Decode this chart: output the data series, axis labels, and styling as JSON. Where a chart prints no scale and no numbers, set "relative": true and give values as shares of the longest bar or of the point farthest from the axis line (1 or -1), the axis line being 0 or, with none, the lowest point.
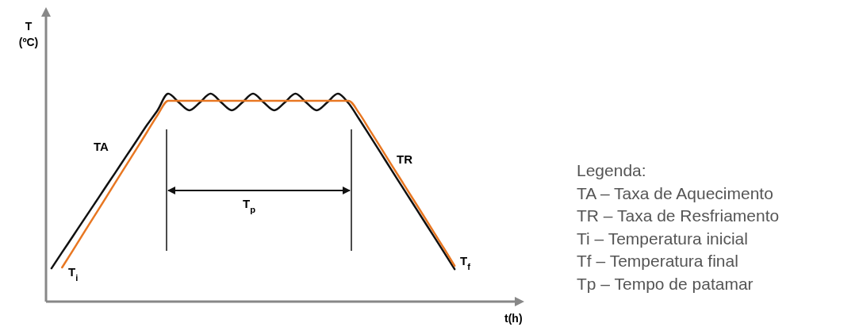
{
  "chart_data": {
    "type": "line",
    "relative": true,
    "xlabel": "t(h)",
    "ylabel": "T (ºC)",
    "categories": [
      null,
      null,
      null,
      null,
      null,
      null,
      null,
      null,
      null,
      null,
      null,
      null,
      null,
      null,
      null,
      null,
      null,
      null,
      null,
      null,
      null,
      null,
      null,
      null,
      null,
      null,
      null,
      null,
      null,
      null,
      null,
      null,
      null,
      null,
      null,
      null,
      null,
      null,
      null,
      null,
      null,
      null,
      null,
      null
    ],
    "series": [
      {
        "color": "#111111",
        "values": [
          0.16,
          0.237,
          0.313,
          0.39,
          0.466,
          0.543,
          0.619,
          0.696,
          0.772,
          0.849,
          0.92,
          1,
          0.958,
          0.92,
          0.958,
          1,
          0.958,
          0.92,
          0.958,
          1,
          0.958,
          0.92,
          0.958,
          1,
          0.958,
          0.92,
          0.958,
          1,
          0.954,
          0.878,
          0.798,
          0.718,
          0.637,
          0.557,
          0.477,
          0.397,
          0.317,
          0.237,
          0.156,
          null,
          null,
          null,
          null,
          null
        ]
      },
      {
        "color": "#e87722",
        "values": [
          null,
          0.164,
          0.245,
          0.327,
          0.408,
          0.489,
          0.571,
          0.652,
          0.733,
          0.815,
          0.897,
          0.966,
          0.966,
          0.966,
          0.966,
          0.966,
          0.966,
          0.966,
          0.966,
          0.966,
          0.966,
          0.966,
          0.966,
          0.966,
          0.966,
          0.966,
          0.966,
          0.966,
          0.966,
          0.906,
          0.825,
          0.744,
          0.662,
          0.581,
          0.5,
          0.419,
          0.337,
          0.256,
          0.172,
          null,
          null,
          null,
          null,
          null
        ]
      }
    ],
    "annotations": [
      "TA",
      "TR",
      "T$_{i}$",
      "T$_{f}$",
      "T$_{p}$",
      "Legenda:",
      "TA – Taxa de Aquecimento",
      "TR – Taxa de Resfriamento",
      "Ti – Temperatura inicial",
      "Tf – Temperatura final",
      "Tp – Tempo de patamar"
    ]
  }
}
